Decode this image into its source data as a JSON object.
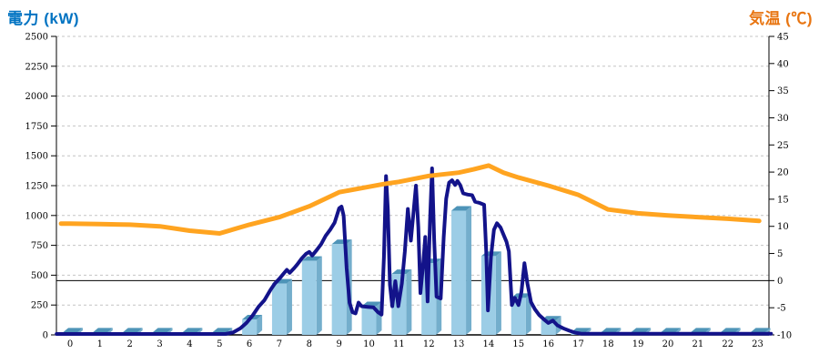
{
  "colors": {
    "left_title": "#0073C2",
    "right_title": "#E87511",
    "bar_front": "#9CCDE6",
    "bar_side": "#74AECC",
    "bar_top": "#4E94B8",
    "power_line": "#13138A",
    "temp_line": "#FFA420",
    "grid": "#C4C4C4",
    "axis": "#000000",
    "zero_line": "#000000"
  },
  "chart_data": {
    "type": "combo_bar_line",
    "legend": "none",
    "grid": "horizontal-dashed",
    "x_axis": {
      "unit": "hour",
      "ticks": [
        0,
        1,
        2,
        3,
        4,
        5,
        6,
        7,
        8,
        9,
        10,
        11,
        12,
        13,
        14,
        15,
        16,
        17,
        18,
        19,
        20,
        21,
        22,
        23
      ]
    },
    "left_axis": {
      "title": "電力 (kW)",
      "min": 0,
      "max": 2500,
      "step": 250,
      "ticks": [
        0,
        250,
        500,
        750,
        1000,
        1250,
        1500,
        1750,
        2000,
        2250,
        2500
      ]
    },
    "right_axis": {
      "title": "気温 (℃)",
      "min": -10,
      "max": 45,
      "step": 5,
      "ticks": [
        -10,
        -5,
        0,
        5,
        10,
        15,
        20,
        25,
        30,
        35,
        40,
        45
      ]
    },
    "reference_line": {
      "axis": "right",
      "value": 0
    },
    "series": [
      {
        "name": "power-bars",
        "type": "bar",
        "axis": "left",
        "unit": "kW",
        "hours": [
          0,
          1,
          2,
          3,
          4,
          5,
          6,
          7,
          8,
          9,
          10,
          11,
          12,
          13,
          14,
          15,
          16,
          17,
          18,
          19,
          20,
          21,
          22,
          23
        ],
        "values": [
          20,
          20,
          20,
          20,
          20,
          20,
          130,
          430,
          620,
          760,
          240,
          510,
          600,
          1040,
          660,
          310,
          120,
          20,
          20,
          20,
          20,
          20,
          20,
          20
        ]
      },
      {
        "name": "power-line",
        "type": "line",
        "axis": "left",
        "unit": "kW",
        "points": [
          [
            -0.45,
            8
          ],
          [
            1,
            8
          ],
          [
            2,
            8
          ],
          [
            3,
            8
          ],
          [
            4,
            8
          ],
          [
            5.2,
            8
          ],
          [
            5.45,
            20
          ],
          [
            5.7,
            55
          ],
          [
            5.9,
            100
          ],
          [
            6.1,
            160
          ],
          [
            6.3,
            235
          ],
          [
            6.5,
            290
          ],
          [
            6.7,
            375
          ],
          [
            6.85,
            430
          ],
          [
            7,
            470
          ],
          [
            7.15,
            515
          ],
          [
            7.25,
            545
          ],
          [
            7.35,
            520
          ],
          [
            7.5,
            560
          ],
          [
            7.6,
            590
          ],
          [
            7.75,
            640
          ],
          [
            7.9,
            680
          ],
          [
            8,
            695
          ],
          [
            8.1,
            665
          ],
          [
            8.25,
            710
          ],
          [
            8.4,
            760
          ],
          [
            8.55,
            830
          ],
          [
            8.7,
            880
          ],
          [
            8.85,
            940
          ],
          [
            9,
            1060
          ],
          [
            9.08,
            1075
          ],
          [
            9.15,
            1000
          ],
          [
            9.25,
            560
          ],
          [
            9.35,
            270
          ],
          [
            9.45,
            190
          ],
          [
            9.55,
            180
          ],
          [
            9.65,
            270
          ],
          [
            9.75,
            240
          ],
          [
            9.95,
            235
          ],
          [
            10.15,
            230
          ],
          [
            10.3,
            190
          ],
          [
            10.42,
            170
          ],
          [
            10.5,
            650
          ],
          [
            10.57,
            1330
          ],
          [
            10.63,
            1050
          ],
          [
            10.7,
            420
          ],
          [
            10.78,
            240
          ],
          [
            10.88,
            450
          ],
          [
            10.98,
            240
          ],
          [
            11.1,
            430
          ],
          [
            11.2,
            700
          ],
          [
            11.3,
            1055
          ],
          [
            11.4,
            790
          ],
          [
            11.5,
            1060
          ],
          [
            11.57,
            1250
          ],
          [
            11.65,
            900
          ],
          [
            11.72,
            350
          ],
          [
            11.82,
            620
          ],
          [
            11.88,
            820
          ],
          [
            11.96,
            280
          ],
          [
            12.04,
            950
          ],
          [
            12.11,
            1395
          ],
          [
            12.18,
            800
          ],
          [
            12.26,
            320
          ],
          [
            12.4,
            305
          ],
          [
            12.5,
            820
          ],
          [
            12.58,
            1140
          ],
          [
            12.68,
            1275
          ],
          [
            12.78,
            1295
          ],
          [
            12.88,
            1255
          ],
          [
            12.96,
            1290
          ],
          [
            13.05,
            1255
          ],
          [
            13.15,
            1185
          ],
          [
            13.3,
            1175
          ],
          [
            13.45,
            1170
          ],
          [
            13.55,
            1115
          ],
          [
            13.7,
            1105
          ],
          [
            13.85,
            1090
          ],
          [
            13.92,
            700
          ],
          [
            13.98,
            205
          ],
          [
            14.08,
            650
          ],
          [
            14.18,
            880
          ],
          [
            14.28,
            935
          ],
          [
            14.4,
            900
          ],
          [
            14.5,
            840
          ],
          [
            14.6,
            780
          ],
          [
            14.68,
            700
          ],
          [
            14.78,
            250
          ],
          [
            14.88,
            310
          ],
          [
            15,
            250
          ],
          [
            15.1,
            360
          ],
          [
            15.2,
            600
          ],
          [
            15.3,
            430
          ],
          [
            15.42,
            275
          ],
          [
            15.55,
            215
          ],
          [
            15.7,
            165
          ],
          [
            15.85,
            130
          ],
          [
            16,
            100
          ],
          [
            16.15,
            120
          ],
          [
            16.3,
            80
          ],
          [
            16.5,
            55
          ],
          [
            16.7,
            35
          ],
          [
            16.9,
            18
          ],
          [
            17.1,
            10
          ],
          [
            18,
            9
          ],
          [
            19,
            9
          ],
          [
            20,
            9
          ],
          [
            21,
            9
          ],
          [
            22,
            9
          ],
          [
            23.45,
            9
          ]
        ]
      },
      {
        "name": "temperature-line",
        "type": "line",
        "axis": "right",
        "unit": "°C",
        "points": [
          [
            -0.3,
            10.5
          ],
          [
            0,
            10.5
          ],
          [
            1,
            10.4
          ],
          [
            2,
            10.3
          ],
          [
            3,
            10
          ],
          [
            4,
            9.2
          ],
          [
            5,
            8.7
          ],
          [
            6,
            10.3
          ],
          [
            7,
            11.7
          ],
          [
            8,
            13.7
          ],
          [
            9,
            16.3
          ],
          [
            9.8,
            17.1
          ],
          [
            10.5,
            17.8
          ],
          [
            11,
            18.2
          ],
          [
            12,
            19.3
          ],
          [
            13,
            19.9
          ],
          [
            13.5,
            20.5
          ],
          [
            14,
            21.2
          ],
          [
            14.5,
            19.9
          ],
          [
            15,
            19
          ],
          [
            16,
            17.5
          ],
          [
            17,
            15.8
          ],
          [
            18,
            13.1
          ],
          [
            19,
            12.4
          ],
          [
            20,
            12
          ],
          [
            21,
            11.7
          ],
          [
            22,
            11.4
          ],
          [
            23.05,
            11
          ]
        ]
      }
    ]
  }
}
